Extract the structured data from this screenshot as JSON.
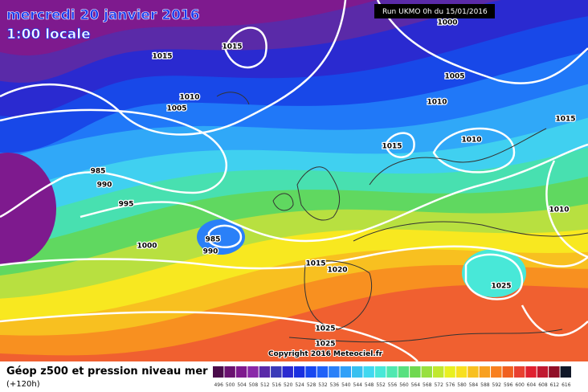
{
  "header": {
    "date": "mercredi 20 janvier 2016",
    "time": "1:00 locale",
    "run": "Run UKMO 0h du 15/01/2016"
  },
  "isobar_labels": [
    "1000",
    "1015",
    "1015",
    "1005",
    "1010",
    "1010",
    "1005",
    "1015",
    "1010",
    "985",
    "990",
    "995",
    "1015",
    "1010",
    "985",
    "990",
    "1000",
    "1015",
    "1020",
    "1025",
    "1025",
    "1025"
  ],
  "copyright": "Copyright 2016 Meteociel.fr",
  "footer": {
    "title": "Géop z500 et pression niveau mer",
    "lead": "(+120h)"
  },
  "colorbar": {
    "labels": [
      496,
      500,
      504,
      508,
      512,
      516,
      520,
      524,
      528,
      532,
      536,
      540,
      544,
      548,
      552,
      556,
      560,
      564,
      568,
      572,
      576,
      580,
      584,
      588,
      592,
      596,
      600,
      604,
      608,
      612,
      616
    ],
    "colors": [
      "#4b0c4b",
      "#6a1270",
      "#7e1a8e",
      "#8a28a8",
      "#5a2aa8",
      "#3a3ab8",
      "#2a2ad0",
      "#1a30e0",
      "#1848f0",
      "#2062f8",
      "#2a80f8",
      "#30a0f8",
      "#38c0f0",
      "#40d8f0",
      "#48e8d8",
      "#50e8b0",
      "#58e080",
      "#70d850",
      "#98e040",
      "#c0e830",
      "#e8f020",
      "#f8e020",
      "#f8c020",
      "#f8a020",
      "#f88020",
      "#f06020",
      "#e84030",
      "#e02030",
      "#c01830",
      "#901028",
      "#101828"
    ]
  }
}
